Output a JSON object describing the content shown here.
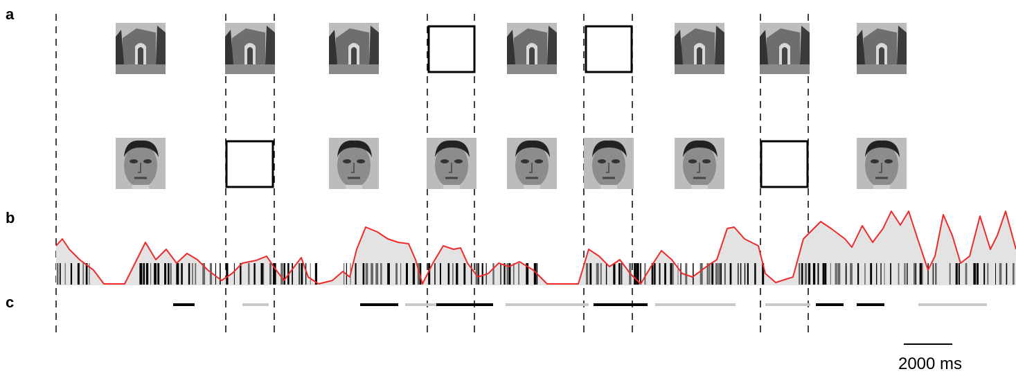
{
  "panels": [
    {
      "label": "a"
    },
    {
      "label": "b"
    },
    {
      "label": "c"
    }
  ],
  "scale_bar": {
    "label": "2000 ms"
  }
}
